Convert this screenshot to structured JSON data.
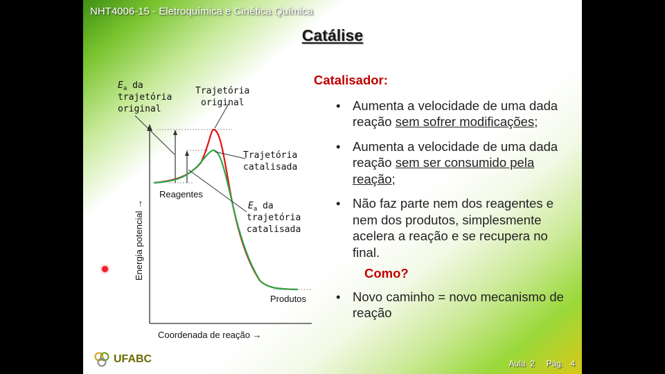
{
  "header": {
    "course_title": "NHT4006-15 - Eletroquímica e Cinética Química"
  },
  "slide": {
    "title": "Catálise"
  },
  "diagram": {
    "ea_original": {
      "symbol": "E",
      "sub": "a",
      "line1_rest": " da",
      "line2": "trajetória",
      "line3": "original"
    },
    "traj_original": {
      "line1": "Trajetória",
      "line2": "original"
    },
    "traj_catalisada": {
      "line1": "Trajetória",
      "line2": "catalisada"
    },
    "ea_catalisada": {
      "symbol": "E",
      "sub": "a",
      "line1_rest": " da",
      "line2": "trajetória",
      "line3": "catalisada"
    },
    "reagentes": "Reagentes",
    "produtos": "Produtos",
    "y_axis_label": "Energia potencial →",
    "x_axis_label": "Coordenada de reação →",
    "colors": {
      "original": "#e01010",
      "catalisada": "#2ea84a"
    }
  },
  "content": {
    "heading": "Catalisador:",
    "b1": {
      "pre": "Aumenta a velocidade de uma dada reação ",
      "u": "sem sofrer modificações",
      "post": ";"
    },
    "b2": {
      "pre": "Aumenta a velocidade de uma dada reação ",
      "u": "sem ser consumido pela reação",
      "post": ";"
    },
    "b3": "Não faz parte nem dos reagentes e nem dos produtos, simplesmente acelera a reação e se recupera no final.",
    "como": "Como?",
    "b4": "Novo caminho = novo mecanismo de reação"
  },
  "footer": {
    "logo_text": "UFABC",
    "aula_label": "Aula",
    "aula_num": "2",
    "pag_label": "Pág.",
    "pag_num": "4"
  }
}
